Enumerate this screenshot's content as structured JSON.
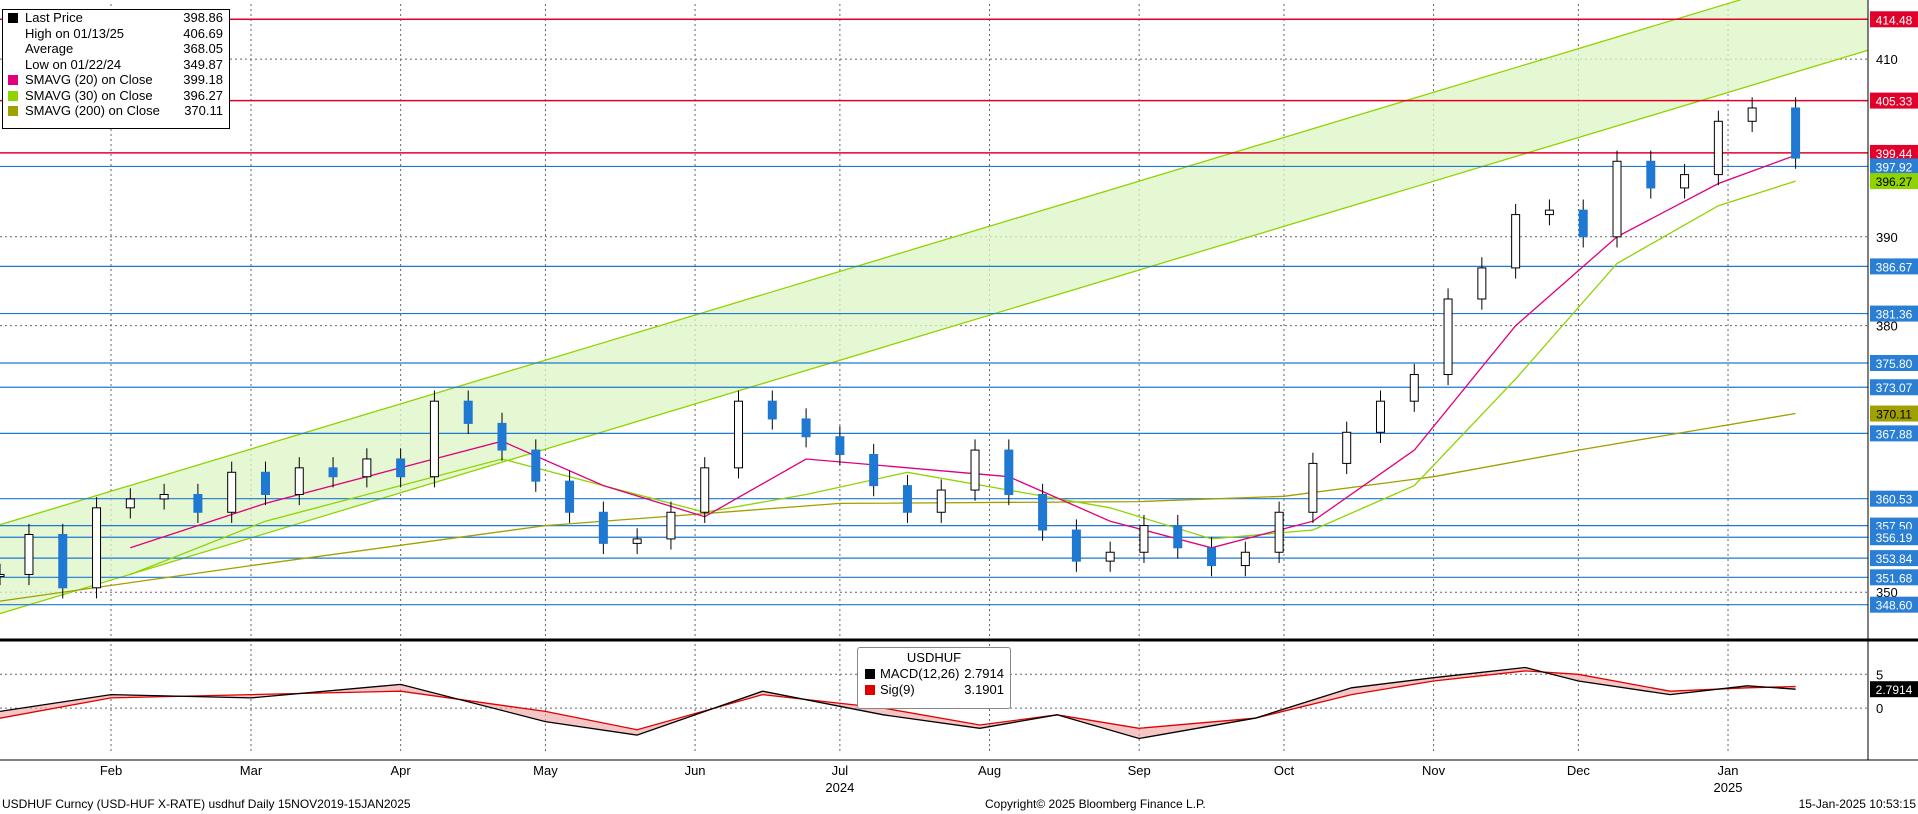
{
  "legend": [
    {
      "label": "Last Price",
      "value": "398.86",
      "color": "#000000"
    },
    {
      "label": "High on 01/13/25",
      "value": "406.69",
      "color": ""
    },
    {
      "label": "Average",
      "value": "368.05",
      "color": ""
    },
    {
      "label": "Low on 01/22/24",
      "value": "349.87",
      "color": ""
    },
    {
      "label": "SMAVG (20)  on Close",
      "value": "399.18",
      "color": "#e0007a"
    },
    {
      "label": "SMAVG (30)  on Close",
      "value": "396.27",
      "color": "#8fd400"
    },
    {
      "label": "SMAVG (200)  on Close",
      "value": "370.11",
      "color": "#a0a000"
    }
  ],
  "macd_legend": {
    "title": "USDHUF",
    "items": [
      {
        "label": "MACD(12,26)",
        "value": "2.7914",
        "color": "#000000"
      },
      {
        "label": "Sig(9)",
        "value": "3.1901",
        "color": "#e00000"
      }
    ]
  },
  "footer": {
    "left": "USDHUF Curncy (USD-HUF X-RATE) usdhuf  Daily 15NOV2019-15JAN2025",
    "center": "Copyright© 2025 Bloomberg Finance L.P.",
    "right": "15-Jan-2025 10:53:15"
  },
  "chart_data": {
    "type": "line",
    "x_range": [
      "2024-01-09",
      "2025-01-30"
    ],
    "y_range": [
      345.3,
      416.2
    ],
    "y_ticks": [
      350,
      380,
      390,
      410
    ],
    "month_ticks": [
      {
        "label": "Feb",
        "date": "2024-02-01"
      },
      {
        "label": "Mar",
        "date": "2024-03-01"
      },
      {
        "label": "Apr",
        "date": "2024-04-01"
      },
      {
        "label": "May",
        "date": "2024-05-01"
      },
      {
        "label": "Jun",
        "date": "2024-06-01"
      },
      {
        "label": "Jul",
        "date": "2024-07-01"
      },
      {
        "label": "Aug",
        "date": "2024-08-01"
      },
      {
        "label": "Sep",
        "date": "2024-09-01"
      },
      {
        "label": "Oct",
        "date": "2024-10-01"
      },
      {
        "label": "Nov",
        "date": "2024-11-01"
      },
      {
        "label": "Dec",
        "date": "2024-12-01"
      },
      {
        "label": "Jan",
        "date": "2025-01-01"
      }
    ],
    "year_labels": [
      "2024",
      "2025"
    ],
    "price_levels": [
      {
        "value": 414.48,
        "label": "414.48",
        "kind": "red"
      },
      {
        "value": 405.33,
        "label": "405.33",
        "kind": "red"
      },
      {
        "value": 399.44,
        "label": "399.44",
        "kind": "red"
      },
      {
        "value": 397.92,
        "label": "397.92",
        "kind": "blue"
      },
      {
        "value": 386.67,
        "label": "386.67",
        "kind": "blue"
      },
      {
        "value": 381.36,
        "label": "381.36",
        "kind": "blue"
      },
      {
        "value": 375.8,
        "label": "375.80",
        "kind": "blue"
      },
      {
        "value": 373.07,
        "label": "373.07",
        "kind": "blue"
      },
      {
        "value": 367.88,
        "label": "367.88",
        "kind": "blue"
      },
      {
        "value": 360.53,
        "label": "360.53",
        "kind": "blue"
      },
      {
        "value": 357.5,
        "label": "357.50",
        "kind": "blue"
      },
      {
        "value": 356.19,
        "label": "356.19",
        "kind": "blue"
      },
      {
        "value": 353.84,
        "label": "353.84",
        "kind": "blue"
      },
      {
        "value": 351.68,
        "label": "351.68",
        "kind": "blue"
      },
      {
        "value": 348.6,
        "label": "348.60",
        "kind": "blue"
      }
    ],
    "value_tags": [
      {
        "value": 396.27,
        "label": "396.27",
        "color": "#8fd400"
      },
      {
        "value": 370.11,
        "label": "370.11",
        "color": "#a0a000"
      }
    ],
    "channel": {
      "upper": [
        {
          "date": "2024-01-09",
          "value": 357.6
        },
        {
          "date": "2025-01-30",
          "value": 421.0
        }
      ],
      "lower": [
        {
          "date": "2024-01-09",
          "value": 347.6
        },
        {
          "date": "2025-01-30",
          "value": 411.0
        }
      ]
    },
    "close": [
      {
        "date": "2024-01-09",
        "value": 352.0
      },
      {
        "date": "2024-01-15",
        "value": 356.5
      },
      {
        "date": "2024-01-22",
        "value": 350.5
      },
      {
        "date": "2024-01-29",
        "value": 359.5
      },
      {
        "date": "2024-02-05",
        "value": 360.5
      },
      {
        "date": "2024-02-12",
        "value": 361.0
      },
      {
        "date": "2024-02-19",
        "value": 359.0
      },
      {
        "date": "2024-02-26",
        "value": 363.5
      },
      {
        "date": "2024-03-04",
        "value": 361.0
      },
      {
        "date": "2024-03-11",
        "value": 364.0
      },
      {
        "date": "2024-03-18",
        "value": 363.0
      },
      {
        "date": "2024-03-25",
        "value": 365.0
      },
      {
        "date": "2024-04-01",
        "value": 363.0
      },
      {
        "date": "2024-04-08",
        "value": 371.5
      },
      {
        "date": "2024-04-15",
        "value": 369.0
      },
      {
        "date": "2024-04-22",
        "value": 366.0
      },
      {
        "date": "2024-04-29",
        "value": 362.5
      },
      {
        "date": "2024-05-06",
        "value": 359.0
      },
      {
        "date": "2024-05-13",
        "value": 355.5
      },
      {
        "date": "2024-05-20",
        "value": 356.0
      },
      {
        "date": "2024-05-27",
        "value": 359.0
      },
      {
        "date": "2024-06-03",
        "value": 364.0
      },
      {
        "date": "2024-06-10",
        "value": 371.5
      },
      {
        "date": "2024-06-17",
        "value": 369.5
      },
      {
        "date": "2024-06-24",
        "value": 367.5
      },
      {
        "date": "2024-07-01",
        "value": 365.5
      },
      {
        "date": "2024-07-08",
        "value": 362.0
      },
      {
        "date": "2024-07-15",
        "value": 359.0
      },
      {
        "date": "2024-07-22",
        "value": 361.5
      },
      {
        "date": "2024-07-29",
        "value": 366.0
      },
      {
        "date": "2024-08-05",
        "value": 361.0
      },
      {
        "date": "2024-08-12",
        "value": 357.0
      },
      {
        "date": "2024-08-19",
        "value": 353.5
      },
      {
        "date": "2024-08-26",
        "value": 354.5
      },
      {
        "date": "2024-09-02",
        "value": 357.5
      },
      {
        "date": "2024-09-09",
        "value": 355.0
      },
      {
        "date": "2024-09-16",
        "value": 353.0
      },
      {
        "date": "2024-09-23",
        "value": 354.5
      },
      {
        "date": "2024-09-30",
        "value": 359.0
      },
      {
        "date": "2024-10-07",
        "value": 364.5
      },
      {
        "date": "2024-10-14",
        "value": 368.0
      },
      {
        "date": "2024-10-21",
        "value": 371.5
      },
      {
        "date": "2024-10-28",
        "value": 374.5
      },
      {
        "date": "2024-11-04",
        "value": 383.0
      },
      {
        "date": "2024-11-11",
        "value": 386.5
      },
      {
        "date": "2024-11-18",
        "value": 392.5
      },
      {
        "date": "2024-11-25",
        "value": 393.0
      },
      {
        "date": "2024-12-02",
        "value": 390.0
      },
      {
        "date": "2024-12-09",
        "value": 398.5
      },
      {
        "date": "2024-12-16",
        "value": 395.5
      },
      {
        "date": "2024-12-23",
        "value": 397.0
      },
      {
        "date": "2024-12-30",
        "value": 403.0
      },
      {
        "date": "2025-01-06",
        "value": 404.5
      },
      {
        "date": "2025-01-15",
        "value": 398.86
      }
    ],
    "sma20": [
      {
        "date": "2024-02-05",
        "value": 355.0
      },
      {
        "date": "2024-03-04",
        "value": 360.0
      },
      {
        "date": "2024-04-01",
        "value": 364.0
      },
      {
        "date": "2024-04-22",
        "value": 367.0
      },
      {
        "date": "2024-05-13",
        "value": 362.0
      },
      {
        "date": "2024-06-03",
        "value": 358.5
      },
      {
        "date": "2024-06-24",
        "value": 365.0
      },
      {
        "date": "2024-07-15",
        "value": 364.0
      },
      {
        "date": "2024-08-05",
        "value": 363.0
      },
      {
        "date": "2024-08-26",
        "value": 358.0
      },
      {
        "date": "2024-09-16",
        "value": 355.0
      },
      {
        "date": "2024-10-07",
        "value": 358.0
      },
      {
        "date": "2024-10-28",
        "value": 366.0
      },
      {
        "date": "2024-11-18",
        "value": 380.0
      },
      {
        "date": "2024-12-09",
        "value": 390.0
      },
      {
        "date": "2024-12-30",
        "value": 396.0
      },
      {
        "date": "2025-01-15",
        "value": 399.18
      }
    ],
    "sma30": [
      {
        "date": "2024-02-05",
        "value": 352.0
      },
      {
        "date": "2024-03-04",
        "value": 358.0
      },
      {
        "date": "2024-04-01",
        "value": 362.0
      },
      {
        "date": "2024-04-22",
        "value": 365.0
      },
      {
        "date": "2024-05-13",
        "value": 362.0
      },
      {
        "date": "2024-06-03",
        "value": 359.0
      },
      {
        "date": "2024-06-24",
        "value": 361.0
      },
      {
        "date": "2024-07-15",
        "value": 363.5
      },
      {
        "date": "2024-08-05",
        "value": 361.5
      },
      {
        "date": "2024-08-26",
        "value": 359.5
      },
      {
        "date": "2024-09-16",
        "value": 356.0
      },
      {
        "date": "2024-10-07",
        "value": 357.0
      },
      {
        "date": "2024-10-28",
        "value": 362.0
      },
      {
        "date": "2024-11-18",
        "value": 374.0
      },
      {
        "date": "2024-12-09",
        "value": 387.0
      },
      {
        "date": "2024-12-30",
        "value": 393.5
      },
      {
        "date": "2025-01-15",
        "value": 396.27
      }
    ],
    "sma200": [
      {
        "date": "2024-01-09",
        "value": 349.0
      },
      {
        "date": "2024-03-01",
        "value": 353.0
      },
      {
        "date": "2024-05-01",
        "value": 357.5
      },
      {
        "date": "2024-07-01",
        "value": 360.0
      },
      {
        "date": "2024-09-01",
        "value": 360.2
      },
      {
        "date": "2024-10-01",
        "value": 360.8
      },
      {
        "date": "2024-11-01",
        "value": 363.0
      },
      {
        "date": "2024-12-01",
        "value": 366.0
      },
      {
        "date": "2025-01-15",
        "value": 370.11
      }
    ],
    "macd_panel": {
      "y_ticks": [
        5,
        0
      ],
      "y_range": [
        -6.5,
        8.0
      ],
      "last_value_label": "2.7914",
      "macd": [
        {
          "date": "2024-01-09",
          "value": -0.5
        },
        {
          "date": "2024-02-01",
          "value": 2.0
        },
        {
          "date": "2024-03-01",
          "value": 1.5
        },
        {
          "date": "2024-04-01",
          "value": 3.5
        },
        {
          "date": "2024-05-01",
          "value": -2.0
        },
        {
          "date": "2024-05-20",
          "value": -4.0
        },
        {
          "date": "2024-06-15",
          "value": 2.5
        },
        {
          "date": "2024-07-10",
          "value": -1.0
        },
        {
          "date": "2024-07-30",
          "value": -3.0
        },
        {
          "date": "2024-08-15",
          "value": -1.0
        },
        {
          "date": "2024-09-01",
          "value": -4.5
        },
        {
          "date": "2024-09-25",
          "value": -1.5
        },
        {
          "date": "2024-10-15",
          "value": 3.0
        },
        {
          "date": "2024-11-01",
          "value": 4.5
        },
        {
          "date": "2024-11-20",
          "value": 6.0
        },
        {
          "date": "2024-12-01",
          "value": 4.0
        },
        {
          "date": "2024-12-20",
          "value": 2.0
        },
        {
          "date": "2025-01-05",
          "value": 3.3
        },
        {
          "date": "2025-01-15",
          "value": 2.7914
        }
      ],
      "signal": [
        {
          "date": "2024-01-09",
          "value": -1.5
        },
        {
          "date": "2024-02-01",
          "value": 1.5
        },
        {
          "date": "2024-03-01",
          "value": 2.0
        },
        {
          "date": "2024-04-01",
          "value": 2.5
        },
        {
          "date": "2024-05-01",
          "value": -0.5
        },
        {
          "date": "2024-05-20",
          "value": -3.2
        },
        {
          "date": "2024-06-15",
          "value": 2.0
        },
        {
          "date": "2024-07-10",
          "value": 0.0
        },
        {
          "date": "2024-07-30",
          "value": -2.5
        },
        {
          "date": "2024-08-15",
          "value": -1.0
        },
        {
          "date": "2024-09-01",
          "value": -3.0
        },
        {
          "date": "2024-09-25",
          "value": -1.5
        },
        {
          "date": "2024-10-15",
          "value": 2.0
        },
        {
          "date": "2024-11-01",
          "value": 4.0
        },
        {
          "date": "2024-11-20",
          "value": 5.5
        },
        {
          "date": "2024-12-01",
          "value": 5.0
        },
        {
          "date": "2024-12-20",
          "value": 2.5
        },
        {
          "date": "2025-01-05",
          "value": 3.0
        },
        {
          "date": "2025-01-15",
          "value": 3.1901
        }
      ]
    }
  }
}
